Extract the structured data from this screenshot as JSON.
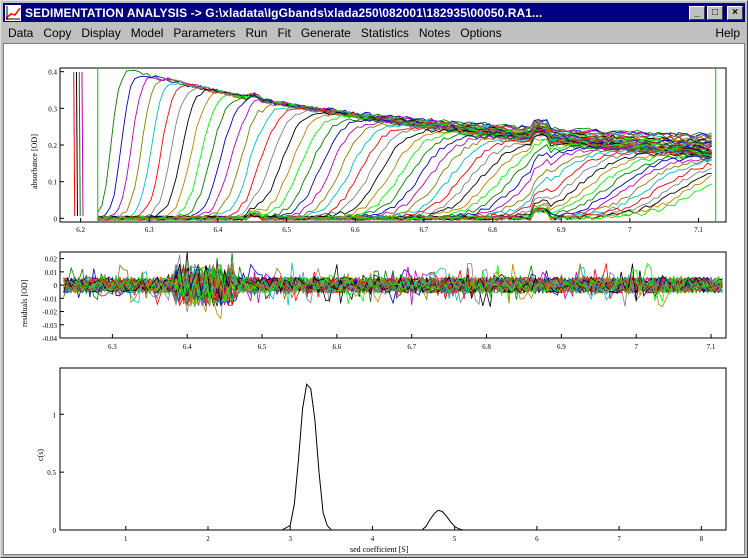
{
  "window": {
    "title": "SEDIMENTATION ANALYSIS -> G:\\xladata\\IgGbands\\xlada250\\082001\\182935\\00050.RA1...",
    "buttons": {
      "minimize": "_",
      "maximize": "□",
      "close": "×"
    }
  },
  "menu": {
    "items": [
      "Data",
      "Copy",
      "Display",
      "Model",
      "Parameters",
      "Run",
      "Fit",
      "Generate",
      "Statistics",
      "Notes",
      "Options"
    ],
    "help": "Help"
  },
  "plots": {
    "absorbance": {
      "ylabel": "absorbance [OD]",
      "yticks": [
        "0.4",
        "0.3",
        "0.2",
        "0.1",
        "0"
      ],
      "xticks": [
        "6.2",
        "6.3",
        "6.4",
        "6.5",
        "6.6",
        "6.7",
        "6.8",
        "6.9",
        "7",
        "7.1"
      ]
    },
    "residuals": {
      "ylabel": "residuals [OD]",
      "yticks": [
        "0.02",
        "0.01",
        "0",
        "-0.01",
        "-0.02",
        "-0.03",
        "-0.04"
      ],
      "xticks": [
        "6.3",
        "6.4",
        "6.5",
        "6.6",
        "6.7",
        "6.8",
        "6.9",
        "7",
        "7.1"
      ]
    },
    "distribution": {
      "ylabel": "c(s)",
      "xlabel": "sed coefficient [S]",
      "yticks": [
        "1",
        "0.5",
        "0"
      ],
      "xticks": [
        "1",
        "2",
        "3",
        "4",
        "5",
        "6",
        "7",
        "8"
      ]
    }
  },
  "chart_data": [
    {
      "type": "line",
      "title": "",
      "xlabel": "",
      "ylabel": "absorbance [OD]",
      "xlim": [
        6.17,
        7.14
      ],
      "ylim": [
        -0.01,
        0.41
      ],
      "meniscus": 6.19,
      "fit_limits": [
        6.225,
        7.125
      ],
      "series_count": 60,
      "colors": [
        "#008000",
        "#0000c0",
        "#c000c0",
        "#808000",
        "#00c0c0",
        "#ff0000",
        "#808080",
        "#000000",
        "#c08000",
        "#00ff00"
      ]
    },
    {
      "type": "line",
      "title": "",
      "xlabel": "",
      "ylabel": "residuals [OD]",
      "xlim": [
        6.23,
        7.12
      ],
      "ylim": [
        -0.04,
        0.025
      ],
      "series_count": 40
    },
    {
      "type": "line",
      "title": "",
      "xlabel": "sed coefficient [S]",
      "ylabel": "c(s)",
      "xlim": [
        0.2,
        8.3
      ],
      "ylim": [
        0,
        1.4
      ],
      "series": [
        {
          "x": [
            0.5,
            2.9,
            3.0,
            3.05,
            3.1,
            3.15,
            3.2,
            3.25,
            3.3,
            3.35,
            3.4,
            3.45,
            3.5,
            3.55,
            4.6,
            4.65,
            4.7,
            4.75,
            4.8,
            4.85,
            4.9,
            4.95,
            5.0,
            5.05,
            5.1,
            8.25
          ],
          "values": [
            0,
            0,
            0.04,
            0.22,
            0.6,
            1.05,
            1.26,
            1.22,
            0.95,
            0.5,
            0.15,
            0.04,
            0.0,
            0,
            0,
            0.03,
            0.09,
            0.14,
            0.17,
            0.16,
            0.12,
            0.07,
            0.03,
            0.01,
            0,
            0
          ]
        }
      ]
    }
  ]
}
